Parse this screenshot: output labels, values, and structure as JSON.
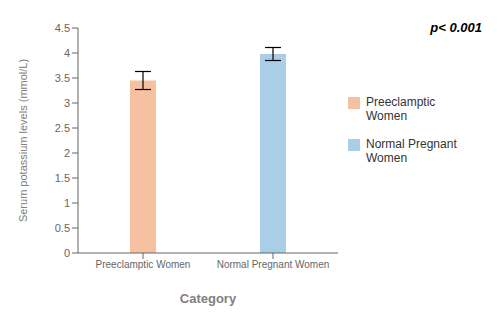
{
  "chart_data": {
    "type": "bar",
    "categories": [
      "Preeclamptic Women",
      "Normal Pregnant Women"
    ],
    "series": [
      {
        "name": "Preeclamptic\nWomen",
        "color": "#F5C1A0",
        "values": [
          3.45,
          null
        ],
        "errors": [
          0.18,
          null
        ]
      },
      {
        "name": "Normal Pregnant\nWomen",
        "color": "#AACDE8",
        "values": [
          null,
          3.98
        ],
        "errors": [
          null,
          0.13
        ]
      }
    ],
    "stacked": true,
    "xlabel": "Category",
    "ylabel": "Serum potassium levels (mmol/L)",
    "ylim": [
      0,
      4.5
    ],
    "yticks": [
      0,
      0.5,
      1.0,
      1.5,
      2.0,
      2.5,
      3.0,
      3.5,
      4.0,
      4.5
    ],
    "annotation": "p< 0.001",
    "legend": "right",
    "grid": false
  }
}
